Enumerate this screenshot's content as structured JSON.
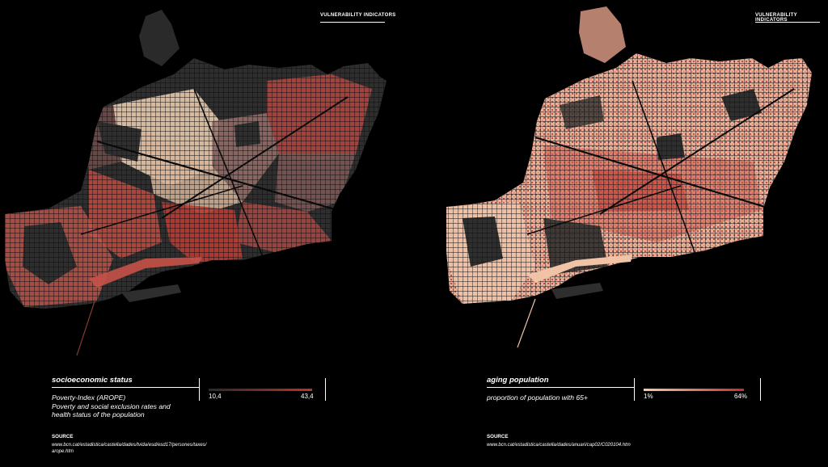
{
  "panels": [
    {
      "header": "VULNERABILITY INDICATORS",
      "title": "socioeconomic status",
      "description_lines": [
        "Poverty-Index (AROPE)",
        "Poverty and social exclusion rates and",
        "health status of the population"
      ],
      "legend": {
        "min_label": "10,4",
        "max_label": "43,4",
        "color_low": "#f2cbb0",
        "color_high": "#c23028"
      },
      "source_heading": "SOURCE",
      "source_lines": [
        "www.bcn.cat/estadistica/castella/dades/tvida/esd/esd17/persones/taxes/",
        "arope.htm"
      ]
    },
    {
      "header": "VULNERABILITY INDICATORS",
      "title": "aging population",
      "description_lines": [
        "proportion of population with 65+"
      ],
      "legend": {
        "min_label": "1%",
        "max_label": "64%",
        "color_low": "#f2cbb0",
        "color_high": "#c23028"
      },
      "source_heading": "SOURCE",
      "source_lines": [
        "www.bcn.cat/estadistica/castella/dades/anuari/cap02/C020104.htm"
      ]
    }
  ],
  "colors": {
    "background": "#000000",
    "base_map": "#2e2e2e",
    "streets": "#111111",
    "low": "#f2cbb0",
    "mid": "#e27a64",
    "high": "#c23028"
  }
}
